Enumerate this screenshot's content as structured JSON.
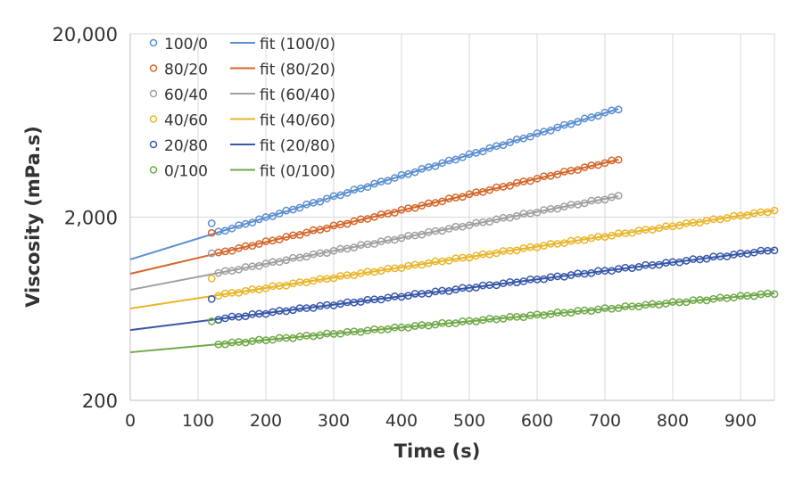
{
  "chart_data": {
    "type": "scatter",
    "xlabel": "Time (s)",
    "ylabel": "Viscosity (mPa.s)",
    "xlim": [
      0,
      950
    ],
    "ylim": [
      200,
      20000
    ],
    "yscale": "log",
    "grid": true,
    "legend_position": "top-left",
    "x_ticks": [
      "0",
      "100",
      "200",
      "300",
      "400",
      "500",
      "600",
      "700",
      "800",
      "900"
    ],
    "x_tick_values": [
      0,
      100,
      200,
      300,
      400,
      500,
      600,
      700,
      800,
      900
    ],
    "y_ticks": [
      "200",
      "2,000",
      "20,000"
    ],
    "y_tick_values": [
      200,
      2000,
      20000
    ],
    "series": [
      {
        "name": "100/0",
        "fit_name": "fit (100/0)",
        "color": "#5b8fd0",
        "fit_at_0": 1175,
        "fit_at_end": 7800,
        "t_first": 120,
        "t_last": 720,
        "t_step": 10,
        "first_point_value": 1850
      },
      {
        "name": "80/20",
        "fit_name": "fit (80/20)",
        "color": "#d5662a",
        "fit_at_0": 982,
        "fit_at_end": 4120,
        "t_first": 120,
        "t_last": 720,
        "t_step": 10,
        "first_point_value": 1640
      },
      {
        "name": "60/40",
        "fit_name": "fit (60/40)",
        "color": "#a0a0a0",
        "fit_at_0": 802,
        "fit_at_end": 2600,
        "t_first": 120,
        "t_last": 720,
        "t_step": 10,
        "first_point_value": 1270
      },
      {
        "name": "40/60",
        "fit_name": "fit (40/60)",
        "color": "#eab52a",
        "fit_at_0": 634,
        "fit_at_end": 2175,
        "t_first": 120,
        "t_last": 950,
        "t_step": 10,
        "first_point_value": 925
      },
      {
        "name": "20/80",
        "fit_name": "fit (20/80)",
        "color": "#3757a8",
        "fit_at_0": 484,
        "fit_at_end": 1328,
        "t_first": 120,
        "t_last": 950,
        "t_step": 10,
        "first_point_value": 715
      },
      {
        "name": "0/100",
        "fit_name": "fit (0/100)",
        "color": "#6fa848",
        "fit_at_0": 366,
        "fit_at_end": 767,
        "t_first": 120,
        "t_last": 950,
        "t_step": 10,
        "first_point_value": 540
      }
    ]
  }
}
